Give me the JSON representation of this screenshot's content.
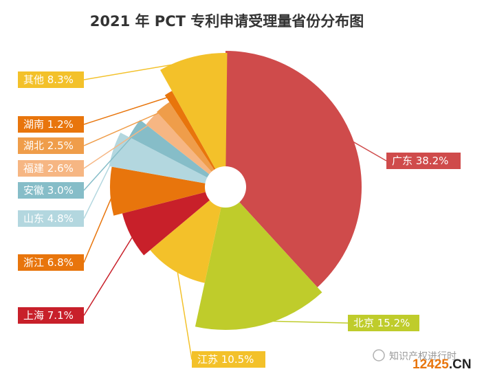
{
  "chart_data": {
    "type": "pie",
    "variant": "rose",
    "title": "2021 年 PCT 专利申请受理量省份分布图",
    "slices": [
      {
        "name": "广东",
        "value": 38.2,
        "label": "广东 38.2%",
        "color": "#cf4b4b"
      },
      {
        "name": "北京",
        "value": 15.2,
        "label": "北京 15.2%",
        "color": "#bfcc2b"
      },
      {
        "name": "江苏",
        "value": 10.5,
        "label": "江苏 10.5%",
        "color": "#f3c12a"
      },
      {
        "name": "上海",
        "value": 7.1,
        "label": "上海 7.1%",
        "color": "#c8202a"
      },
      {
        "name": "浙江",
        "value": 6.8,
        "label": "浙江 6.8%",
        "color": "#e8750c"
      },
      {
        "name": "山东",
        "value": 4.8,
        "label": "山东 4.8%",
        "color": "#b3d7df"
      },
      {
        "name": "安徽",
        "value": 3.0,
        "label": "安徽 3.0%",
        "color": "#86bdc8"
      },
      {
        "name": "福建",
        "value": 2.6,
        "label": "福建 2.6%",
        "color": "#f6b683"
      },
      {
        "name": "湖北",
        "value": 2.5,
        "label": "湖北 2.5%",
        "color": "#ef9d4a"
      },
      {
        "name": "湖南",
        "value": 1.2,
        "label": "湖南 1.2%",
        "color": "#e8750c"
      },
      {
        "name": "其他",
        "value": 8.3,
        "label": "其他 8.3%",
        "color": "#f3c12a"
      }
    ]
  },
  "watermark": {
    "account": "知识产权进行时",
    "site_num": "12425",
    "site_tld": ".CN"
  }
}
